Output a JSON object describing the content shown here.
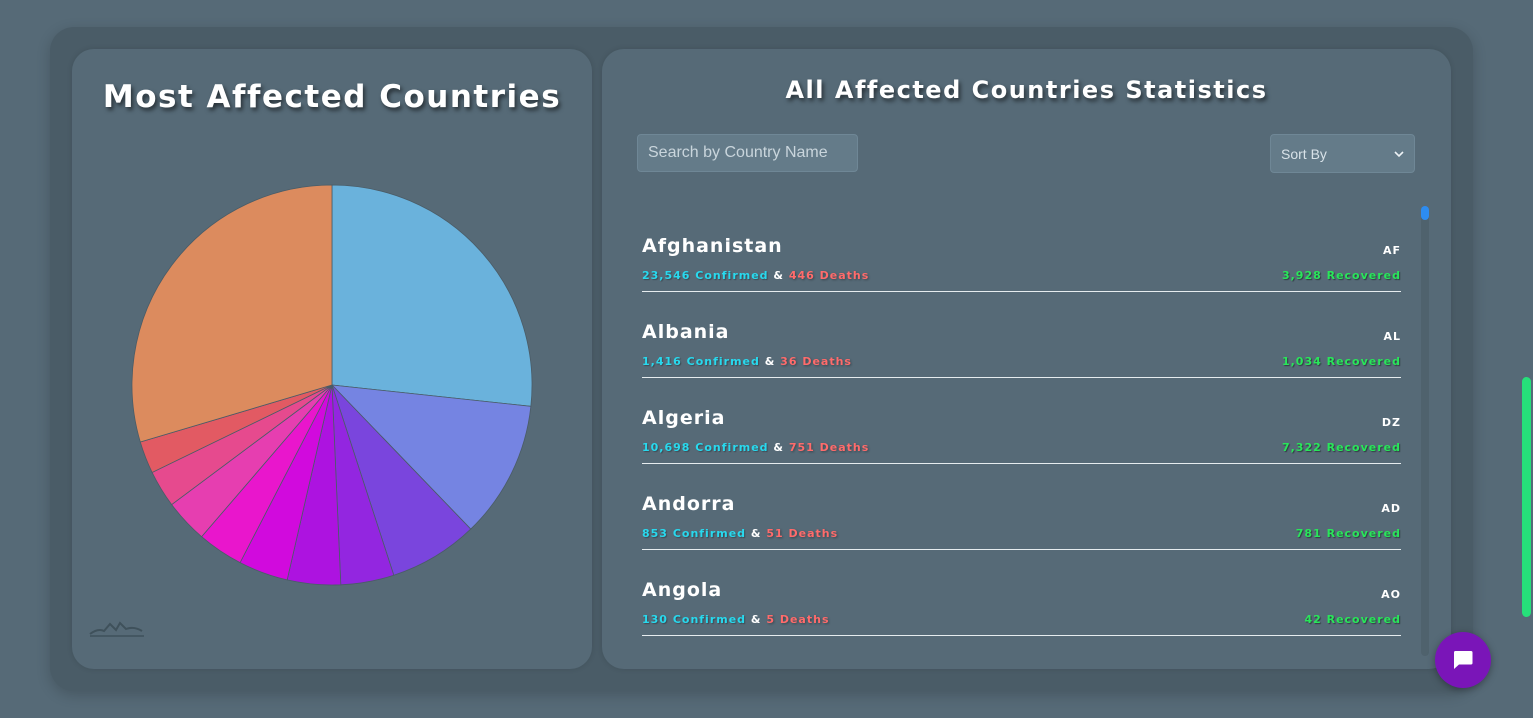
{
  "left_panel": {
    "title": "Most Affected Countries"
  },
  "right_panel": {
    "title": "All Affected Countries Statistics",
    "search": {
      "placeholder": "Search by Country Name",
      "value": ""
    },
    "sort": {
      "selected": "Sort By"
    },
    "connector": "&",
    "confirmed_suffix": "Confirmed",
    "deaths_suffix": "Deaths",
    "recovered_suffix": "Recovered",
    "countries": [
      {
        "name": "Afghanistan",
        "code": "AF",
        "confirmed": "23,546",
        "deaths": "446",
        "recovered": "3,928"
      },
      {
        "name": "Albania",
        "code": "AL",
        "confirmed": "1,416",
        "deaths": "36",
        "recovered": "1,034"
      },
      {
        "name": "Algeria",
        "code": "DZ",
        "confirmed": "10,698",
        "deaths": "751",
        "recovered": "7,322"
      },
      {
        "name": "Andorra",
        "code": "AD",
        "confirmed": "853",
        "deaths": "51",
        "recovered": "781"
      },
      {
        "name": "Angola",
        "code": "AO",
        "confirmed": "130",
        "deaths": "5",
        "recovered": "42"
      }
    ]
  },
  "colors": {
    "confirmed": "#28d9ee",
    "deaths": "#ff6b6b",
    "recovered": "#29e65a",
    "chat_button": "#7a15b8"
  },
  "icons": {
    "chat": "chat-bubble-icon",
    "sort_dropdown": "chevron-down-icon",
    "logo": "logo-icon"
  },
  "chart_data": {
    "type": "pie",
    "title": "Most Affected Countries",
    "values": [
      0.267,
      0.111,
      0.072,
      0.043,
      0.043,
      0.04,
      0.037,
      0.035,
      0.03,
      0.026,
      0.296
    ],
    "colors": [
      "#6ab2dc",
      "#7584e2",
      "#7a45dd",
      "#9326e0",
      "#ad13e0",
      "#d10add",
      "#e916cc",
      "#e63eb0",
      "#e64a8e",
      "#e25a63",
      "#dc8b5e"
    ]
  }
}
